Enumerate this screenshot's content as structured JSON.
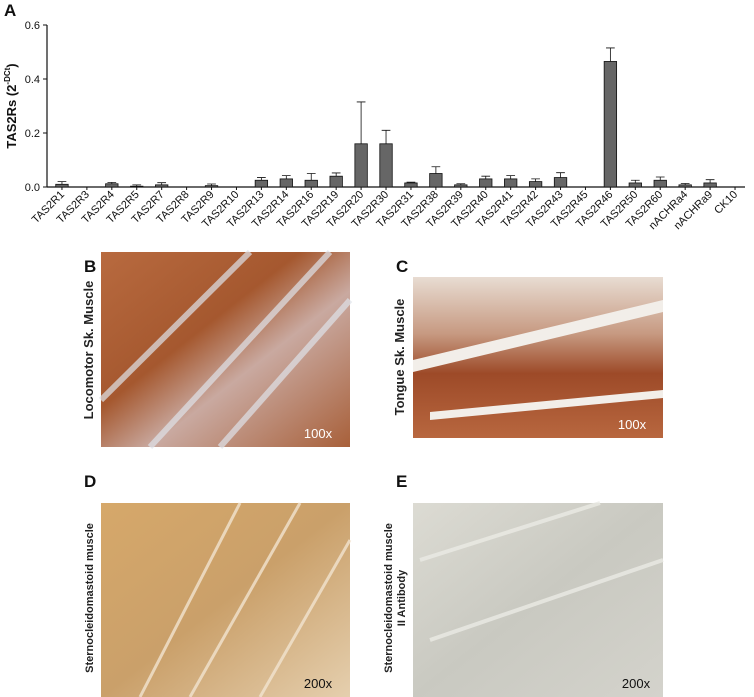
{
  "chart_data": {
    "type": "bar",
    "panel_letter": "A",
    "ylabel": "TAS2Rs (2",
    "ylabel_sup": "-DCt",
    "ylabel_end": ")",
    "categories": [
      "TAS2R1",
      "TAS2R3",
      "TAS2R4",
      "TAS2R5",
      "TAS2R7",
      "TAS2R8",
      "TAS2R9",
      "TAS2R10",
      "TAS2R13",
      "TAS2R14",
      "TAS2R16",
      "TAS2R19",
      "TAS2R20",
      "TAS2R30",
      "TAS2R31",
      "TAS2R38",
      "TAS2R39",
      "TAS2R40",
      "TAS2R41",
      "TAS2R42",
      "TAS2R43",
      "TAS2R45",
      "TAS2R46",
      "TAS2R50",
      "TAS2R60",
      "nACHRa4",
      "nACHRa9",
      "CK10"
    ],
    "values": [
      0.01,
      0,
      0.012,
      0.003,
      0.008,
      0,
      0.005,
      0,
      0.025,
      0.03,
      0.025,
      0.04,
      0.16,
      0.16,
      0.015,
      0.05,
      0.008,
      0.03,
      0.03,
      0.02,
      0.035,
      0,
      0.465,
      0.015,
      0.025,
      0.008,
      0.015,
      0
    ],
    "errors": [
      0.01,
      0,
      0.005,
      0.005,
      0.008,
      0,
      0.006,
      0,
      0.01,
      0.012,
      0.025,
      0.012,
      0.155,
      0.05,
      0.003,
      0.025,
      0.004,
      0.01,
      0.012,
      0.01,
      0.018,
      0,
      0.05,
      0.01,
      0.012,
      0.005,
      0.012,
      0
    ],
    "color": "#666666",
    "ylim": [
      0,
      0.6
    ],
    "yticks": [
      {
        "value": 0,
        "label": "0.0"
      },
      0.2,
      0.4,
      0.6
    ]
  },
  "panels": [
    {
      "letter": "B",
      "label": "Locomotor  Sk. Muscle",
      "magnification": "100x"
    },
    {
      "letter": "C",
      "label": "Tongue Sk. Muscle",
      "magnification": "100x"
    },
    {
      "letter": "D",
      "label": "Sternocleidomastoid muscle",
      "magnification": "200x"
    },
    {
      "letter": "E",
      "label": "Sternocleidomastoid muscle",
      "label2": "II Antibody",
      "magnification": "200x"
    }
  ]
}
